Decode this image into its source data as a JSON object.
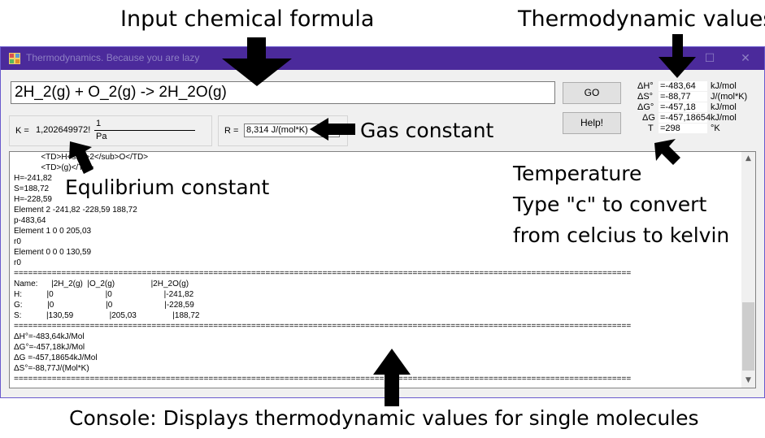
{
  "annotations": {
    "input": "Input chemical formula",
    "thermo": "Thermodynamic values",
    "gas": "Gas constant",
    "equil": "Equlibrium constant",
    "temp_line1": "Temperature",
    "temp_line2": "Type \"c\" to convert",
    "temp_line3": "from celcius to kelvin",
    "console": "Console: Displays thermodynamic values for single molecules"
  },
  "window": {
    "title": "Thermodynamics. Because you are lazy",
    "minimize": "–",
    "maximize": "☐",
    "close": "✕"
  },
  "formula": {
    "value": "2H_2(g) + O_2(g) -> 2H_2O(g)"
  },
  "buttons": {
    "go": "GO",
    "help": "Help!"
  },
  "equilibrium": {
    "label": "K  =",
    "value": "1,202649972!",
    "numerator": "1",
    "denominator": "Pa"
  },
  "gas_constant": {
    "label": "R  =",
    "value": "8,314 J/(mol*K)"
  },
  "thermo_values": [
    {
      "symbol": "ΔH°",
      "value": "=-483,64",
      "unit": "kJ/mol"
    },
    {
      "symbol": "ΔS°",
      "value": "=-88,77",
      "unit": "J/(mol*K)"
    },
    {
      "symbol": "ΔG°",
      "value": "=-457,18",
      "unit": "kJ/mol"
    },
    {
      "symbol": "ΔG",
      "value": "=-457,18654",
      "unit": "kJ/mol"
    },
    {
      "symbol": "T",
      "value": "=298",
      "unit": "°K"
    }
  ],
  "console": {
    "text": "            <TD>H<sub>2</sub>O</TD>\n            <TD>(g)</TD>\nH=-241,82\nS=188,72\nH=-228,59\nElement 2 -241,82 -228,59 188,72\np-483,64\nElement 1 0 0 205,03\nr0\nElement 0 0 0 130,59\nr0\n==================================================================================================================================\nName:      |2H_2(g)  |O_2(g)                |2H_2O(g)\nH:           |0                       |0                       |-241,82\nG:           |0                       |0                       |-228,59\nS:           |130,59                |205,03                |188,72\n==================================================================================================================================\nΔH°=-483,64kJ/Mol\nΔG°=-457,18kJ/Mol\nΔG =-457,18654kJ/Mol\nΔS°=-88,77J/(Mol*K)\n=================================================================================================================================="
  }
}
